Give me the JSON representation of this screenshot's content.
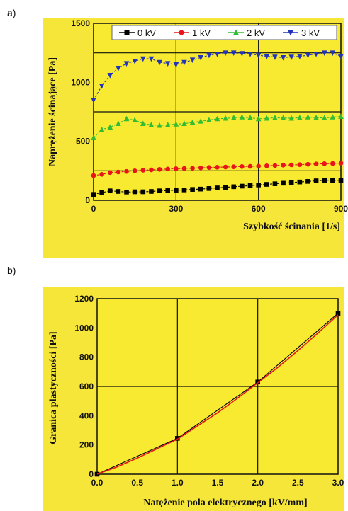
{
  "chart_data": [
    {
      "panel_label": "a)",
      "type": "line",
      "title": "",
      "xlabel": "Szybkość ścinania [1/s]",
      "ylabel": "Naprężenie ścinające [Pa]",
      "xlim": [
        0,
        900
      ],
      "ylim": [
        0,
        1500
      ],
      "xticks": [
        "0",
        "300",
        "600",
        "900"
      ],
      "yticks": [
        "0",
        "500",
        "1000",
        "1500"
      ],
      "grid": true,
      "legend_position": "top-right",
      "series": [
        {
          "name": "0 kV",
          "color": "#000000",
          "marker": "square",
          "x": [
            0,
            30,
            60,
            90,
            120,
            150,
            180,
            210,
            240,
            270,
            300,
            330,
            360,
            390,
            420,
            450,
            480,
            510,
            540,
            570,
            600,
            630,
            660,
            690,
            720,
            750,
            780,
            810,
            840,
            870,
            900
          ],
          "y": [
            50,
            65,
            80,
            75,
            70,
            72,
            72,
            75,
            80,
            82,
            85,
            88,
            92,
            95,
            100,
            105,
            110,
            115,
            120,
            125,
            130,
            135,
            140,
            145,
            150,
            155,
            160,
            165,
            170,
            170,
            170
          ]
        },
        {
          "name": "1 kV",
          "color": "#e8141c",
          "marker": "circle",
          "x": [
            0,
            30,
            60,
            90,
            120,
            150,
            180,
            210,
            240,
            270,
            300,
            330,
            360,
            390,
            420,
            450,
            480,
            510,
            540,
            570,
            600,
            630,
            660,
            690,
            720,
            750,
            780,
            810,
            840,
            870,
            900
          ],
          "y": [
            210,
            220,
            235,
            240,
            245,
            250,
            255,
            258,
            262,
            265,
            268,
            270,
            272,
            275,
            278,
            280,
            282,
            284,
            286,
            288,
            290,
            292,
            295,
            298,
            300,
            302,
            305,
            308,
            310,
            312,
            315
          ]
        },
        {
          "name": "2 kV",
          "color": "#33bb33",
          "marker": "triangle-up",
          "x": [
            0,
            30,
            60,
            90,
            120,
            150,
            180,
            210,
            240,
            270,
            300,
            330,
            360,
            390,
            420,
            450,
            480,
            510,
            540,
            570,
            600,
            630,
            660,
            690,
            720,
            750,
            780,
            810,
            840,
            870,
            900
          ],
          "y": [
            530,
            600,
            620,
            650,
            690,
            680,
            650,
            640,
            635,
            640,
            645,
            650,
            660,
            670,
            680,
            690,
            695,
            700,
            705,
            700,
            690,
            695,
            700,
            698,
            695,
            700,
            705,
            700,
            698,
            705,
            710
          ]
        },
        {
          "name": "3 kV",
          "color": "#2233bb",
          "marker": "triangle-down",
          "x": [
            0,
            30,
            60,
            90,
            120,
            150,
            180,
            210,
            240,
            270,
            300,
            330,
            360,
            390,
            420,
            450,
            480,
            510,
            540,
            570,
            600,
            630,
            660,
            690,
            720,
            750,
            780,
            810,
            840,
            870,
            900
          ],
          "y": [
            850,
            970,
            1060,
            1120,
            1160,
            1180,
            1200,
            1200,
            1170,
            1160,
            1150,
            1170,
            1190,
            1210,
            1230,
            1240,
            1250,
            1250,
            1245,
            1240,
            1230,
            1220,
            1215,
            1210,
            1215,
            1220,
            1230,
            1240,
            1250,
            1250,
            1220
          ]
        }
      ]
    },
    {
      "panel_label": "b)",
      "type": "line",
      "title": "",
      "xlabel": "Natężenie pola elektrycznego [kV/mm]",
      "ylabel": "Granica plastyczności [Pa]",
      "xlim": [
        0,
        3
      ],
      "ylim": [
        0,
        1200
      ],
      "xticks": [
        "0.0",
        "0.5",
        "1.0",
        "1.5",
        "2.0",
        "2.5",
        "3.0"
      ],
      "yticks": [
        "0",
        "200",
        "400",
        "600",
        "800",
        "1000",
        "1200"
      ],
      "grid": true,
      "series": [
        {
          "color": "#000000",
          "marker": "square",
          "x": [
            0,
            1,
            2,
            3
          ],
          "y": [
            0,
            245,
            630,
            1100
          ]
        },
        {
          "color": "#e8141c",
          "marker": "none",
          "smooth": true,
          "x": [
            0,
            0.25,
            0.5,
            0.75,
            1.0,
            1.25,
            1.5,
            1.75,
            2.0,
            2.25,
            2.5,
            2.75,
            3.0
          ],
          "y": [
            0,
            50,
            110,
            175,
            240,
            330,
            420,
            520,
            625,
            730,
            845,
            965,
            1090
          ]
        }
      ]
    }
  ]
}
